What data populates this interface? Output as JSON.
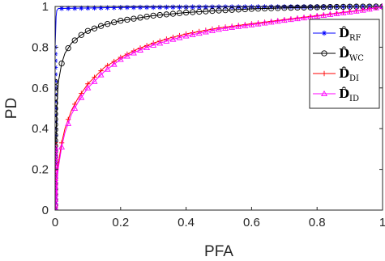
{
  "chart_data": {
    "type": "line",
    "xlabel": "PFA",
    "ylabel": "PD",
    "xlim": [
      0,
      1
    ],
    "ylim": [
      0,
      1
    ],
    "xticks": [
      "0",
      "0.2",
      "0.4",
      "0.6",
      "0.8",
      "1"
    ],
    "yticks": [
      "0",
      "0.2",
      "0.4",
      "0.6",
      "0.8",
      "1"
    ],
    "grid": false,
    "legend_position": "top-right",
    "series": [
      {
        "name": "D̂RF",
        "legend_main": "D̂",
        "legend_sub": "RF",
        "color": "#0000ff",
        "marker": "asterisk",
        "x": [
          0,
          0,
          0,
          0,
          0.002,
          0.003,
          0.005,
          0.01,
          0.2,
          0.4,
          0.6,
          0.8,
          1.0
        ],
        "y": [
          0,
          0.2,
          0.5,
          0.8,
          0.9,
          0.95,
          0.98,
          0.99,
          0.995,
          0.997,
          0.998,
          0.999,
          1.0
        ]
      },
      {
        "name": "D̂WC",
        "legend_main": "D̂",
        "legend_sub": "WC",
        "color": "#000000",
        "marker": "circle",
        "x": [
          0,
          0.002,
          0.005,
          0.01,
          0.02,
          0.03,
          0.05,
          0.08,
          0.1,
          0.15,
          0.2,
          0.3,
          0.4,
          0.5,
          0.6,
          0.7,
          0.8,
          0.9,
          1.0
        ],
        "y": [
          0,
          0.3,
          0.5,
          0.63,
          0.72,
          0.77,
          0.82,
          0.86,
          0.88,
          0.91,
          0.93,
          0.955,
          0.97,
          0.98,
          0.988,
          0.993,
          0.996,
          0.999,
          1.0
        ]
      },
      {
        "name": "D̂DI",
        "legend_main": "D̂",
        "legend_sub": "DI",
        "color": "#ff0000",
        "marker": "plus",
        "x": [
          0,
          0.005,
          0.01,
          0.02,
          0.03,
          0.05,
          0.07,
          0.1,
          0.15,
          0.2,
          0.25,
          0.3,
          0.35,
          0.4,
          0.45,
          0.5,
          0.55,
          0.6,
          0.65,
          0.7,
          0.75,
          0.8,
          0.85,
          0.9,
          0.95,
          1.0
        ],
        "y": [
          0,
          0.15,
          0.23,
          0.33,
          0.4,
          0.49,
          0.55,
          0.62,
          0.7,
          0.75,
          0.79,
          0.82,
          0.845,
          0.865,
          0.88,
          0.895,
          0.905,
          0.915,
          0.925,
          0.935,
          0.945,
          0.955,
          0.965,
          0.975,
          0.985,
          1.0
        ]
      },
      {
        "name": "D̂ID",
        "legend_main": "D̂",
        "legend_sub": "ID",
        "color": "#ff00ff",
        "marker": "triangle",
        "x": [
          0,
          0.005,
          0.01,
          0.02,
          0.03,
          0.05,
          0.07,
          0.1,
          0.15,
          0.2,
          0.25,
          0.3,
          0.35,
          0.4,
          0.45,
          0.5,
          0.55,
          0.6,
          0.65,
          0.7,
          0.75,
          0.8,
          0.85,
          0.9,
          0.95,
          1.0
        ],
        "y": [
          0,
          0.13,
          0.21,
          0.31,
          0.38,
          0.47,
          0.53,
          0.6,
          0.68,
          0.74,
          0.78,
          0.81,
          0.835,
          0.855,
          0.872,
          0.888,
          0.9,
          0.91,
          0.921,
          0.932,
          0.942,
          0.952,
          0.963,
          0.973,
          0.984,
          1.0
        ]
      }
    ]
  }
}
